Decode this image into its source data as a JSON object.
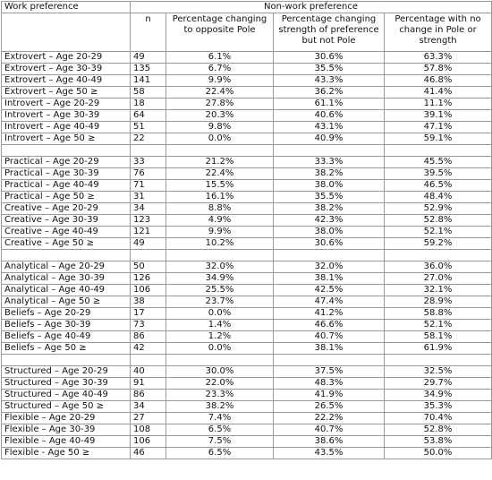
{
  "header": {
    "col_label": "Work preference",
    "group": "Non-work preference",
    "col_n": "n",
    "col_opposite": "Percentage changing to opposite Pole",
    "col_strength": "Percentage changing strength of preference but not Pole",
    "col_nochange": "Percentage with no change in Pole or strength"
  },
  "groups": [
    {
      "rows": [
        {
          "label": "Extrovert – Age 20-29",
          "n": "49",
          "opposite": "6.1%",
          "strength": "30.6%",
          "nochange": "63.3%"
        },
        {
          "label": "Extrovert – Age 30-39",
          "n": "135",
          "opposite": "6.7%",
          "strength": "35.5%",
          "nochange": "57.8%"
        },
        {
          "label": "Extrovert – Age 40-49",
          "n": "141",
          "opposite": "9.9%",
          "strength": "43.3%",
          "nochange": "46.8%"
        },
        {
          "label": "Extrovert – Age 50 ≥",
          "n": "58",
          "opposite": "22.4%",
          "strength": "36.2%",
          "nochange": "41.4%"
        },
        {
          "label": "Introvert – Age 20-29",
          "n": "18",
          "opposite": "27.8%",
          "strength": "61.1%",
          "nochange": "11.1%"
        },
        {
          "label": "Introvert – Age 30-39",
          "n": "64",
          "opposite": "20.3%",
          "strength": "40.6%",
          "nochange": "39.1%"
        },
        {
          "label": "Introvert – Age 40-49",
          "n": "51",
          "opposite": "9.8%",
          "strength": "43.1%",
          "nochange": "47.1%"
        },
        {
          "label": "Introvert – Age 50 ≥",
          "n": "22",
          "opposite": "0.0%",
          "strength": "40.9%",
          "nochange": "59.1%"
        }
      ]
    },
    {
      "rows": [
        {
          "label": "Practical – Age 20-29",
          "n": "33",
          "opposite": "21.2%",
          "strength": "33.3%",
          "nochange": "45.5%"
        },
        {
          "label": "Practical – Age 30-39",
          "n": "76",
          "opposite": "22.4%",
          "strength": "38.2%",
          "nochange": "39.5%"
        },
        {
          "label": "Practical – Age 40-49",
          "n": "71",
          "opposite": "15.5%",
          "strength": "38.0%",
          "nochange": "46.5%"
        },
        {
          "label": "Practical – Age 50 ≥",
          "n": "31",
          "opposite": "16.1%",
          "strength": "35.5%",
          "nochange": "48.4%"
        },
        {
          "label": "Creative – Age 20-29",
          "n": "34",
          "opposite": "8.8%",
          "strength": "38.2%",
          "nochange": "52.9%"
        },
        {
          "label": "Creative – Age 30-39",
          "n": "123",
          "opposite": "4.9%",
          "strength": "42.3%",
          "nochange": "52.8%"
        },
        {
          "label": "Creative – Age 40-49",
          "n": "121",
          "opposite": "9.9%",
          "strength": "38.0%",
          "nochange": "52.1%"
        },
        {
          "label": "Creative – Age 50 ≥",
          "n": "49",
          "opposite": "10.2%",
          "strength": "30.6%",
          "nochange": "59.2%"
        }
      ]
    },
    {
      "rows": [
        {
          "label": "Analytical – Age 20-29",
          "n": "50",
          "opposite": "32.0%",
          "strength": "32.0%",
          "nochange": "36.0%"
        },
        {
          "label": "Analytical – Age 30-39",
          "n": "126",
          "opposite": "34.9%",
          "strength": "38.1%",
          "nochange": "27.0%"
        },
        {
          "label": "Analytical – Age 40-49",
          "n": "106",
          "opposite": "25.5%",
          "strength": "42.5%",
          "nochange": "32.1%"
        },
        {
          "label": "Analytical – Age 50 ≥",
          "n": "38",
          "opposite": "23.7%",
          "strength": "47.4%",
          "nochange": "28.9%"
        },
        {
          "label": "Beliefs – Age 20-29",
          "n": "17",
          "opposite": "0.0%",
          "strength": "41.2%",
          "nochange": "58.8%"
        },
        {
          "label": "Beliefs – Age 30-39",
          "n": "73",
          "opposite": "1.4%",
          "strength": "46.6%",
          "nochange": "52.1%"
        },
        {
          "label": "Beliefs – Age 40-49",
          "n": "86",
          "opposite": "1.2%",
          "strength": "40.7%",
          "nochange": "58.1%"
        },
        {
          "label": "Beliefs – Age 50 ≥",
          "n": "42",
          "opposite": "0.0%",
          "strength": "38.1%",
          "nochange": "61.9%"
        }
      ]
    },
    {
      "rows": [
        {
          "label": "Structured – Age 20-29",
          "n": "40",
          "opposite": "30.0%",
          "strength": "37.5%",
          "nochange": "32.5%"
        },
        {
          "label": "Structured – Age 30-39",
          "n": "91",
          "opposite": "22.0%",
          "strength": "48.3%",
          "nochange": "29.7%"
        },
        {
          "label": "Structured – Age 40-49",
          "n": "86",
          "opposite": "23.3%",
          "strength": "41.9%",
          "nochange": "34.9%"
        },
        {
          "label": "Structured – Age 50 ≥",
          "n": "34",
          "opposite": "38.2%",
          "strength": "26.5%",
          "nochange": "35.3%"
        },
        {
          "label": "Flexible – Age 20-29",
          "n": "27",
          "opposite": "7.4%",
          "strength": "22.2%",
          "nochange": "70.4%"
        },
        {
          "label": "Flexible – Age 30-39",
          "n": "108",
          "opposite": "6.5%",
          "strength": "40.7%",
          "nochange": "52.8%"
        },
        {
          "label": "Flexible – Age 40-49",
          "n": "106",
          "opposite": "7.5%",
          "strength": "38.6%",
          "nochange": "53.8%"
        },
        {
          "label": "Flexible - Age 50 ≥",
          "n": "46",
          "opposite": "6.5%",
          "strength": "43.5%",
          "nochange": "50.0%"
        }
      ]
    }
  ]
}
